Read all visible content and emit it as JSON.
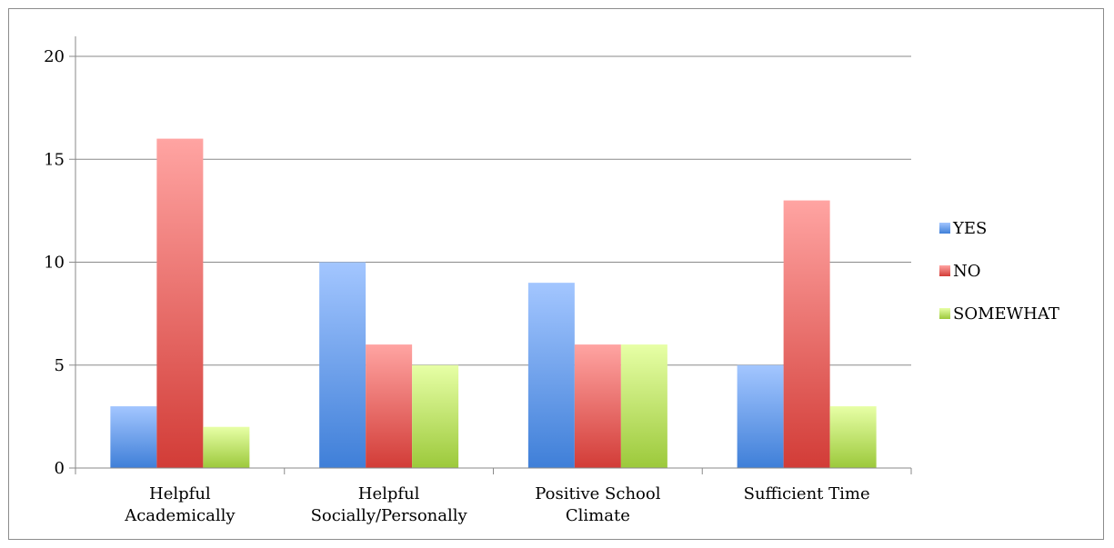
{
  "chart_data": {
    "type": "bar",
    "categories": [
      [
        "Helpful",
        "Academically"
      ],
      [
        "Helpful",
        "Socially/Personally"
      ],
      [
        "Positive School",
        "Climate"
      ],
      [
        "Sufficient Time"
      ]
    ],
    "series": [
      {
        "name": "YES",
        "values": [
          3,
          10,
          9,
          5
        ],
        "color_top": "#a3c6ff",
        "color_bottom": "#3f7fd8"
      },
      {
        "name": "NO",
        "values": [
          16,
          6,
          6,
          13
        ],
        "color_top": "#ffa4a2",
        "color_bottom": "#d23c37"
      },
      {
        "name": "SOMEWHAT",
        "values": [
          2,
          5,
          6,
          3
        ],
        "color_top": "#e7ffa6",
        "color_bottom": "#9cc93b"
      }
    ],
    "y_ticks": [
      "0",
      "5",
      "10",
      "15",
      "20"
    ],
    "ylim": [
      0,
      20
    ],
    "grid": true,
    "legend_position": "right",
    "title": "",
    "xlabel": "",
    "ylabel": ""
  }
}
